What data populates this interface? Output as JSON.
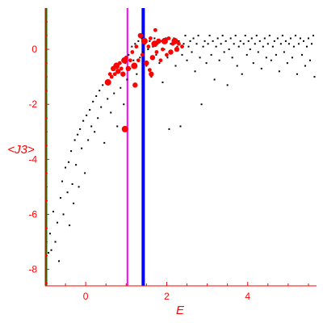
{
  "chart_data": {
    "type": "scatter",
    "title": "",
    "xlabel": "E",
    "ylabel": "<J3>",
    "xlim": [
      -1.0,
      5.7
    ],
    "ylim": [
      -8.6,
      1.5
    ],
    "xticks": [
      0,
      2,
      4
    ],
    "yticks": [
      0,
      -2,
      -4,
      -6,
      -8
    ],
    "tick_labels_x": [
      "0",
      "2",
      "4"
    ],
    "tick_labels_y": [
      "0",
      "-2",
      "-4",
      "-6",
      "-8"
    ],
    "grid": false,
    "legend": "none",
    "colors": {
      "axis": "#ff0000",
      "black_points": "#000000",
      "red_points": "#ff0000",
      "green_line": "#007a00",
      "magenta_line": "#ff00ff",
      "blue_line": "#0000ff"
    },
    "vertical_lines": [
      {
        "x": -0.97,
        "color": "#007a00"
      },
      {
        "x": 1.03,
        "color": "#ff00ff"
      },
      {
        "x": 1.42,
        "color": "#0000ff"
      }
    ],
    "series": [
      {
        "marker": "small-dot",
        "color": "#000000",
        "points": [
          [
            -0.92,
            -7.4
          ],
          [
            -0.88,
            -6.7
          ],
          [
            -0.85,
            -7.3
          ],
          [
            -0.8,
            -5.9
          ],
          [
            -0.75,
            -7.0
          ],
          [
            -0.7,
            -6.3
          ],
          [
            -0.66,
            -7.7
          ],
          [
            -0.62,
            -5.4
          ],
          [
            -0.58,
            -4.8
          ],
          [
            -0.55,
            -6.0
          ],
          [
            -0.5,
            -4.3
          ],
          [
            -0.45,
            -5.2
          ],
          [
            -0.42,
            -4.1
          ],
          [
            -0.4,
            -6.4
          ],
          [
            -0.36,
            -3.7
          ],
          [
            -0.33,
            -4.9
          ],
          [
            -0.3,
            -5.6
          ],
          [
            -0.27,
            -3.3
          ],
          [
            -0.24,
            -4.2
          ],
          [
            -0.2,
            -3.1
          ],
          [
            -0.17,
            -5.0
          ],
          [
            -0.14,
            -2.9
          ],
          [
            -0.1,
            -3.6
          ],
          [
            -0.06,
            -2.6
          ],
          [
            -0.02,
            -4.5
          ],
          [
            0.02,
            -2.4
          ],
          [
            0.06,
            -3.3
          ],
          [
            0.1,
            -2.2
          ],
          [
            0.14,
            -2.8
          ],
          [
            0.18,
            -1.9
          ],
          [
            0.22,
            -3.0
          ],
          [
            0.26,
            -1.7
          ],
          [
            0.3,
            -2.5
          ],
          [
            0.34,
            -1.5
          ],
          [
            0.38,
            -2.1
          ],
          [
            0.42,
            -1.3
          ],
          [
            0.46,
            -3.4
          ],
          [
            0.5,
            -1.2
          ],
          [
            0.54,
            -1.8
          ],
          [
            0.58,
            -0.9
          ],
          [
            0.62,
            -2.3
          ],
          [
            0.66,
            -1.0
          ],
          [
            0.7,
            -1.6
          ],
          [
            0.74,
            -0.6
          ],
          [
            0.78,
            -2.8
          ],
          [
            0.82,
            -0.8
          ],
          [
            0.86,
            -1.4
          ],
          [
            0.9,
            -0.4
          ],
          [
            0.94,
            -2.0
          ],
          [
            0.98,
            -0.5
          ],
          [
            1.02,
            -1.1
          ],
          [
            1.06,
            -0.2
          ],
          [
            1.1,
            -0.7
          ],
          [
            1.14,
            0.1
          ],
          [
            1.18,
            -0.4
          ],
          [
            1.22,
            0.2
          ],
          [
            1.26,
            -0.9
          ],
          [
            1.3,
            0.3
          ],
          [
            1.34,
            -0.3
          ],
          [
            1.38,
            0.4
          ],
          [
            1.42,
            -0.1
          ],
          [
            1.46,
            0.2
          ],
          [
            1.5,
            -0.6
          ],
          [
            1.54,
            0.0
          ],
          [
            1.58,
            0.3
          ],
          [
            1.62,
            -1.0
          ],
          [
            1.66,
            0.1
          ],
          [
            1.7,
            0.4
          ],
          [
            1.74,
            -0.2
          ],
          [
            1.78,
            0.2
          ],
          [
            1.82,
            -0.5
          ],
          [
            1.86,
            0.3
          ],
          [
            1.9,
            -1.2
          ],
          [
            1.94,
            0.0
          ],
          [
            1.98,
            0.4
          ],
          [
            2.02,
            -0.3
          ],
          [
            2.06,
            -2.9
          ],
          [
            2.1,
            0.2
          ],
          [
            2.14,
            -0.1
          ],
          [
            2.18,
            0.4
          ],
          [
            2.22,
            -0.6
          ],
          [
            2.26,
            0.1
          ],
          [
            2.3,
            0.3
          ],
          [
            2.34,
            -2.8
          ],
          [
            2.38,
            -0.2
          ],
          [
            2.42,
            0.2
          ],
          [
            2.46,
            0.5
          ],
          [
            2.5,
            -0.4
          ],
          [
            2.54,
            0.1
          ],
          [
            2.58,
            0.3
          ],
          [
            2.62,
            -0.1
          ],
          [
            2.66,
            0.4
          ],
          [
            2.7,
            -0.8
          ],
          [
            2.74,
            0.2
          ],
          [
            2.78,
            0.5
          ],
          [
            2.82,
            -0.3
          ],
          [
            2.86,
            -2.0
          ],
          [
            2.9,
            0.1
          ],
          [
            2.94,
            0.3
          ],
          [
            2.98,
            -0.5
          ],
          [
            3.02,
            0.2
          ],
          [
            3.06,
            0.5
          ],
          [
            3.1,
            -0.2
          ],
          [
            3.14,
            0.3
          ],
          [
            3.18,
            -1.1
          ],
          [
            3.22,
            0.1
          ],
          [
            3.26,
            0.4
          ],
          [
            3.3,
            -0.4
          ],
          [
            3.34,
            0.2
          ],
          [
            3.38,
            0.5
          ],
          [
            3.42,
            -0.1
          ],
          [
            3.46,
            0.3
          ],
          [
            3.5,
            -1.3
          ],
          [
            3.54,
            0.0
          ],
          [
            3.58,
            0.4
          ],
          [
            3.62,
            -0.3
          ],
          [
            3.66,
            0.2
          ],
          [
            3.7,
            0.5
          ],
          [
            3.74,
            -0.6
          ],
          [
            3.78,
            0.1
          ],
          [
            3.82,
            0.3
          ],
          [
            3.86,
            -0.9
          ],
          [
            3.9,
            0.2
          ],
          [
            3.94,
            0.5
          ],
          [
            3.98,
            -0.2
          ],
          [
            4.02,
            0.3
          ],
          [
            4.06,
            0.0
          ],
          [
            4.1,
            0.4
          ],
          [
            4.14,
            -0.5
          ],
          [
            4.18,
            0.2
          ],
          [
            4.22,
            0.5
          ],
          [
            4.26,
            -0.1
          ],
          [
            4.3,
            0.3
          ],
          [
            4.34,
            -0.7
          ],
          [
            4.38,
            0.1
          ],
          [
            4.42,
            0.4
          ],
          [
            4.46,
            -0.3
          ],
          [
            4.5,
            0.2
          ],
          [
            4.54,
            0.5
          ],
          [
            4.58,
            -0.4
          ],
          [
            4.62,
            0.1
          ],
          [
            4.66,
            0.3
          ],
          [
            4.7,
            -0.2
          ],
          [
            4.74,
            0.4
          ],
          [
            4.78,
            -0.8
          ],
          [
            4.82,
            0.2
          ],
          [
            4.86,
            0.5
          ],
          [
            4.9,
            -0.1
          ],
          [
            4.94,
            0.3
          ],
          [
            4.98,
            -0.5
          ],
          [
            5.02,
            0.2
          ],
          [
            5.06,
            0.4
          ],
          [
            5.1,
            -0.3
          ],
          [
            5.14,
            0.1
          ],
          [
            5.18,
            0.5
          ],
          [
            5.22,
            -0.9
          ],
          [
            5.26,
            0.2
          ],
          [
            5.3,
            0.4
          ],
          [
            5.34,
            -0.2
          ],
          [
            5.38,
            0.3
          ],
          [
            5.42,
            -0.6
          ],
          [
            5.46,
            0.1
          ],
          [
            5.5,
            0.4
          ],
          [
            5.54,
            -0.4
          ],
          [
            5.58,
            0.2
          ],
          [
            5.62,
            0.5
          ],
          [
            5.65,
            -1.0
          ]
        ]
      },
      {
        "marker": "filled-circle",
        "color": "#ff0000",
        "points": [
          [
            0.55,
            -1.2
          ],
          [
            0.6,
            -0.9
          ],
          [
            0.64,
            -1.0
          ],
          [
            0.68,
            -0.7
          ],
          [
            0.72,
            -0.9
          ],
          [
            0.76,
            -0.6
          ],
          [
            0.8,
            -0.8
          ],
          [
            0.84,
            -0.5
          ],
          [
            0.88,
            -0.7
          ],
          [
            0.92,
            -0.9
          ],
          [
            0.96,
            -0.4
          ],
          [
            1.0,
            -0.3
          ],
          [
            1.05,
            -0.7
          ],
          [
            1.1,
            -0.4
          ],
          [
            1.15,
            -0.1
          ],
          [
            1.2,
            -0.6
          ],
          [
            1.25,
            0.1
          ],
          [
            1.3,
            -0.4
          ],
          [
            1.35,
            0.5
          ],
          [
            1.4,
            -0.2
          ],
          [
            1.45,
            0.3
          ],
          [
            1.5,
            -0.5
          ],
          [
            1.55,
            0.1
          ],
          [
            1.6,
            0.4
          ],
          [
            1.65,
            -0.3
          ],
          [
            1.7,
            0.2
          ],
          [
            1.75,
            -0.1
          ],
          [
            1.8,
            0.3
          ],
          [
            1.85,
            -0.4
          ],
          [
            1.9,
            0.0
          ],
          [
            1.95,
            0.3
          ],
          [
            2.0,
            -0.2
          ],
          [
            2.05,
            0.4
          ],
          [
            2.1,
            -0.1
          ],
          [
            2.15,
            0.2
          ],
          [
            2.2,
            0.3
          ],
          [
            2.25,
            0.0
          ],
          [
            2.3,
            0.2
          ],
          [
            2.38,
            0.1
          ],
          [
            1.22,
            -1.3
          ],
          [
            0.97,
            -2.9
          ],
          [
            1.58,
            -0.75
          ],
          [
            1.62,
            -0.9
          ],
          [
            1.72,
            0.7
          ]
        ]
      }
    ]
  }
}
